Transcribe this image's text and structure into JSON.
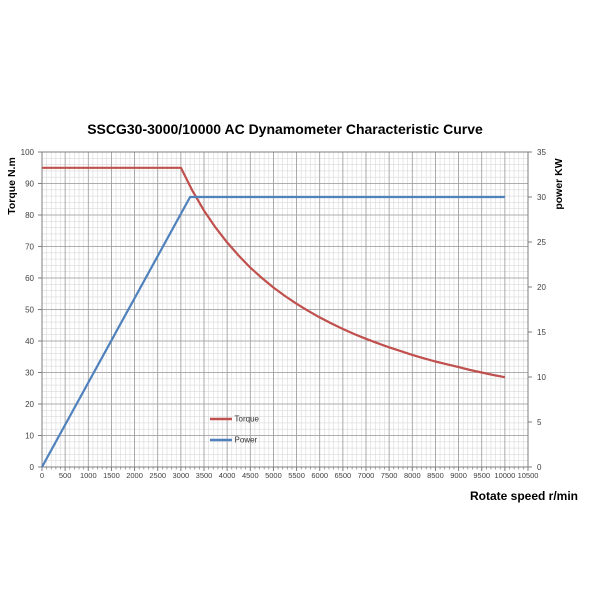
{
  "chart_data": {
    "type": "line",
    "title": "SSCG30-3000/10000 AC Dynamometer Characteristic Curve",
    "xlabel": "Rotate speed r/min",
    "ylabel_left": "Torque N.m",
    "ylabel_right": "power KW",
    "x_axis": {
      "min": 0,
      "max": 10500,
      "major": 500,
      "minor": 100
    },
    "y_left": {
      "min": 0,
      "max": 100,
      "major": 10,
      "minor": 2
    },
    "y_right": {
      "min": 0,
      "max": 35,
      "major": 5
    },
    "grid": {
      "major_color": "#9a9a9a",
      "minor_color": "#d9d9d9",
      "border_color": "#7f7f7f",
      "background": "#ffffff"
    },
    "legend_position": "inside-bottom-left",
    "series": [
      {
        "name": "Torque",
        "axis": "left",
        "color": "#C0504D",
        "points": [
          [
            0,
            95
          ],
          [
            500,
            95
          ],
          [
            1000,
            95
          ],
          [
            1500,
            95
          ],
          [
            2000,
            95
          ],
          [
            2500,
            95
          ],
          [
            3000,
            95
          ],
          [
            3250,
            87.7
          ],
          [
            3500,
            81.4
          ],
          [
            3750,
            76.0
          ],
          [
            4000,
            71.3
          ],
          [
            4250,
            67.1
          ],
          [
            4500,
            63.3
          ],
          [
            4750,
            60.0
          ],
          [
            5000,
            57.0
          ],
          [
            5250,
            54.3
          ],
          [
            5500,
            51.8
          ],
          [
            5750,
            49.6
          ],
          [
            6000,
            47.5
          ],
          [
            6250,
            45.6
          ],
          [
            6500,
            43.8
          ],
          [
            6750,
            42.2
          ],
          [
            7000,
            40.7
          ],
          [
            7250,
            39.3
          ],
          [
            7500,
            38.0
          ],
          [
            7750,
            36.8
          ],
          [
            8000,
            35.6
          ],
          [
            8250,
            34.5
          ],
          [
            8500,
            33.5
          ],
          [
            8750,
            32.6
          ],
          [
            9000,
            31.7
          ],
          [
            9250,
            30.8
          ],
          [
            9500,
            30.0
          ],
          [
            9750,
            29.2
          ],
          [
            10000,
            28.5
          ]
        ]
      },
      {
        "name": "Power",
        "axis": "right",
        "color": "#4F81BD",
        "points": [
          [
            0,
            0
          ],
          [
            3200,
            30
          ],
          [
            10000,
            30
          ]
        ]
      }
    ]
  }
}
